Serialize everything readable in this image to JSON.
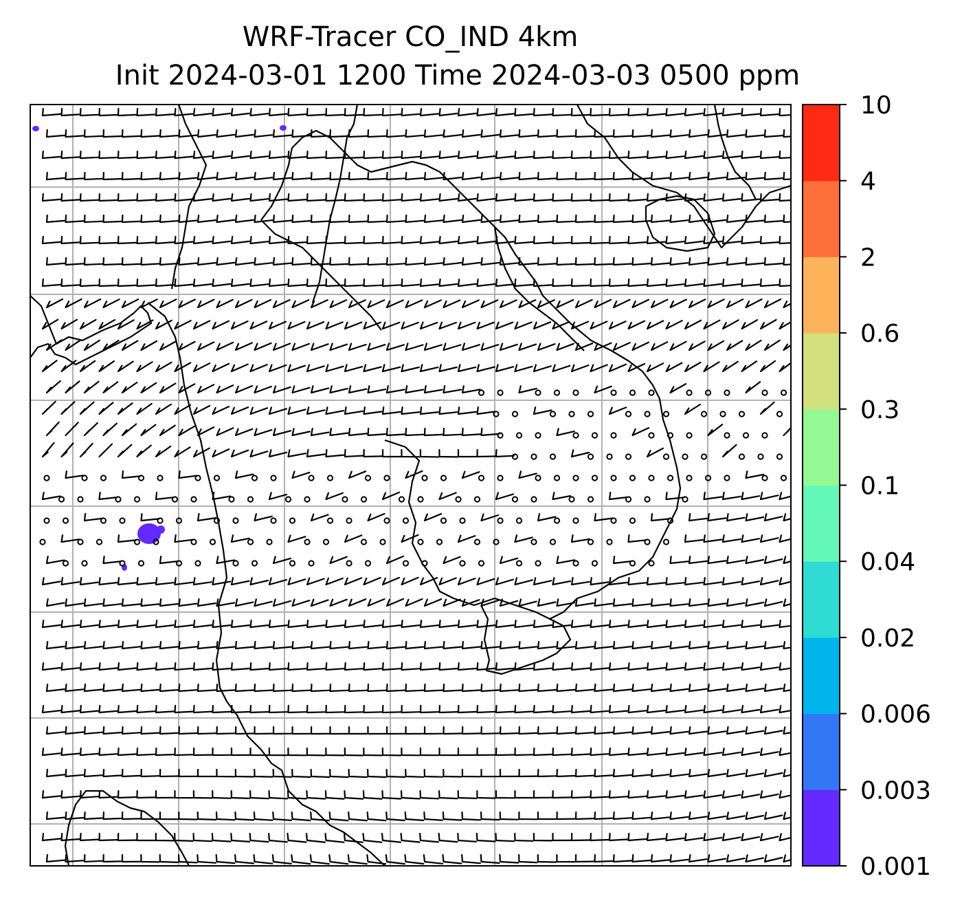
{
  "title": {
    "line1": "WRF-Tracer CO_IND 4km",
    "line2": "Init 2024-03-01 1200 Time 2024-03-03 0500 ppm"
  },
  "colorbar": {
    "tick_labels": [
      "10",
      "4",
      "2",
      "0.6",
      "0.3",
      "0.1",
      "0.04",
      "0.02",
      "0.006",
      "0.003",
      "0.001"
    ],
    "colors_bottom_to_top": [
      "#6329ff",
      "#3377f5",
      "#00b4ec",
      "#2fdbd3",
      "#63f8b8",
      "#94f893",
      "#d2e07e",
      "#ffb35a",
      "#ff6f39",
      "#ff2a14"
    ]
  },
  "map": {
    "gridlines": true,
    "coastlines": true,
    "wind_barbs": true,
    "calm_marker": "open circle",
    "tracer_patch_color": "#6329ff"
  }
}
